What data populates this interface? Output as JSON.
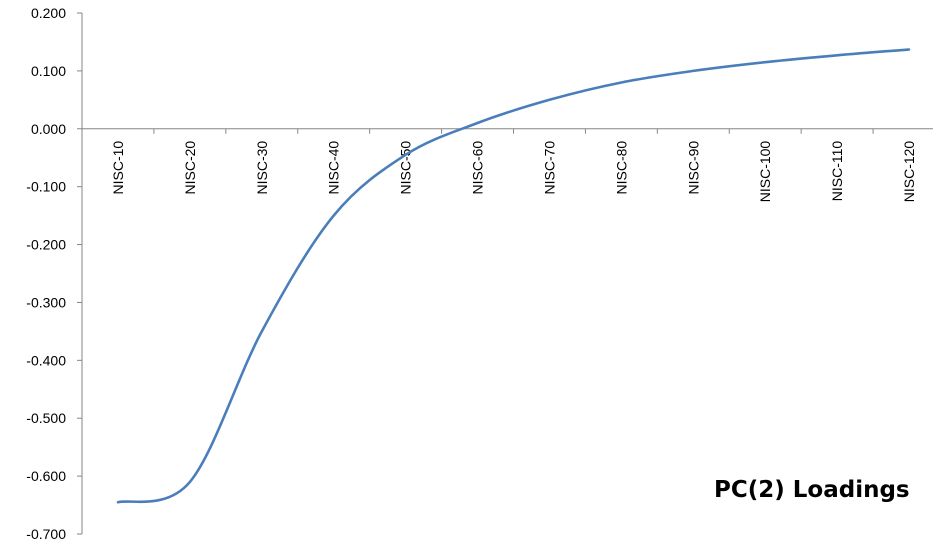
{
  "chart_data": {
    "type": "line",
    "title": "PC(2) Loadings",
    "xlabel": "",
    "ylabel": "",
    "categories": [
      "NISC-10",
      "NISC-20",
      "NISC-30",
      "NISC-40",
      "NISC-50",
      "NISC-60",
      "NISC-70",
      "NISC-80",
      "NISC-90",
      "NISC-100",
      "NISC-110",
      "NISC-120"
    ],
    "ylim": [
      -0.7,
      0.2
    ],
    "yticks": [
      "0.200",
      "0.100",
      "0.000",
      "-0.100",
      "-0.200",
      "-0.300",
      "-0.400",
      "-0.500",
      "-0.600",
      "-0.700"
    ],
    "series": [
      {
        "values": [
          -0.645,
          -0.61,
          -0.35,
          -0.15,
          -0.045,
          0.01,
          0.05,
          0.08,
          0.1,
          0.115,
          0.127,
          0.137
        ]
      }
    ],
    "line_color": "#4a7ebb",
    "grid": false,
    "legend": "none"
  }
}
